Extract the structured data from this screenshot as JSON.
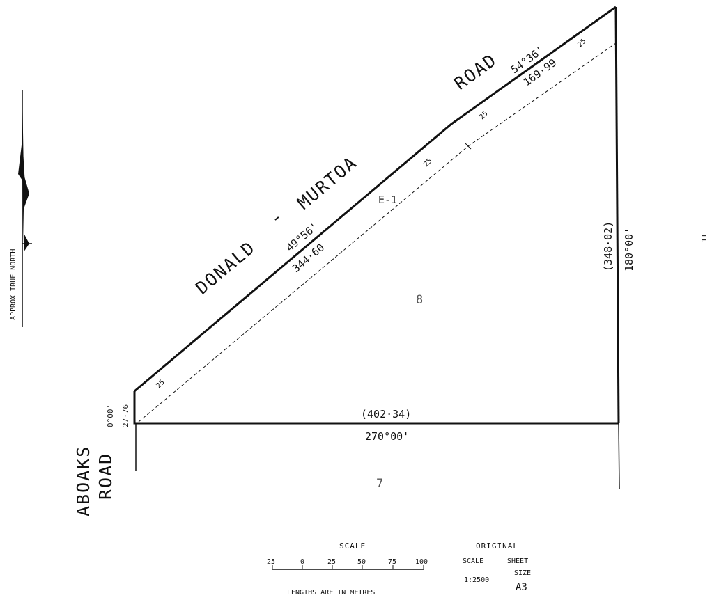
{
  "roads": {
    "main_left": "DONALD",
    "main_dash": "-",
    "main_right": "MURTOA",
    "main_end": "ROAD",
    "side_line1": "ABOAKS",
    "side_line2": "ROAD"
  },
  "north_label": "APPROX TRUE NORTH",
  "easement_label": "E-1",
  "lots": {
    "main": "8",
    "south": "7",
    "east": "11"
  },
  "dimensions": {
    "west_bearing": "0°00'",
    "west_length": "27·76",
    "south_length": "(402·34)",
    "south_bearing": "270°00'",
    "east_length": "(348·02)",
    "east_bearing": "180°00'",
    "road_seg1_bearing": "49°56'",
    "road_seg1_length": "344·60",
    "road_seg2_bearing": "54°36'",
    "road_seg2_length": "169·99",
    "easement_width_1": "25",
    "easement_width_2": "25",
    "easement_width_3": "25",
    "easement_width_4": "25"
  },
  "scale_bar": {
    "title": "SCALE",
    "ticks": [
      "25",
      "0",
      "25",
      "50",
      "75",
      "100"
    ],
    "caption": "LENGTHS ARE IN METRES"
  },
  "original": {
    "title": "ORIGINAL",
    "scale_label": "SCALE",
    "scale_value": "1:2500",
    "sheet_label_1": "SHEET",
    "sheet_label_2": "SIZE",
    "sheet_value": "A3"
  }
}
